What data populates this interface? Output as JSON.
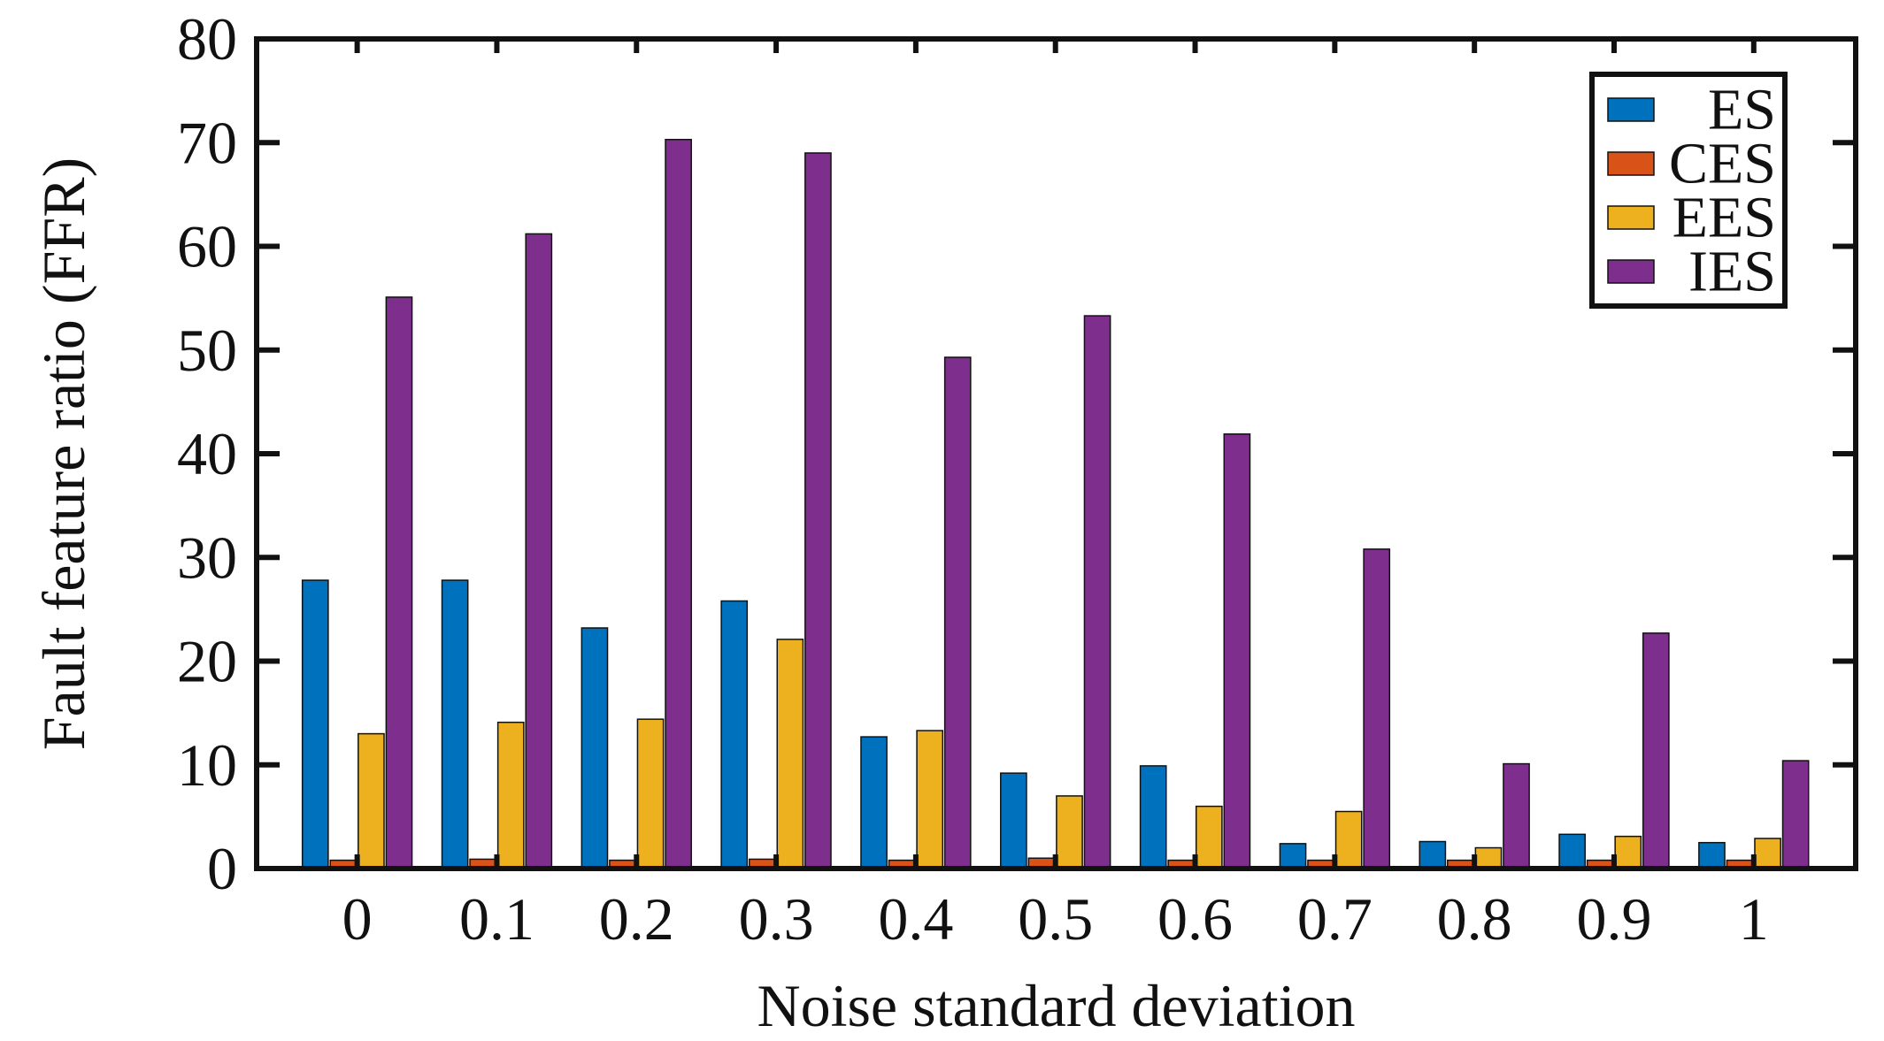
{
  "chart_data": {
    "type": "bar",
    "title": "",
    "xlabel": "Noise standard deviation",
    "ylabel": "Fault feature ratio (FFR)",
    "ylim": [
      0,
      80
    ],
    "yticks": [
      0,
      10,
      20,
      30,
      40,
      50,
      60,
      70,
      80
    ],
    "categories": [
      "0",
      "0.1",
      "0.2",
      "0.3",
      "0.4",
      "0.5",
      "0.6",
      "0.7",
      "0.8",
      "0.9",
      "1"
    ],
    "legend_position": "top-right",
    "series": [
      {
        "name": "ES",
        "color": "#0072BD",
        "values": [
          27.8,
          27.8,
          23.2,
          25.8,
          12.7,
          9.2,
          9.9,
          2.4,
          2.6,
          3.3,
          2.5
        ]
      },
      {
        "name": "CES",
        "color": "#D95319",
        "values": [
          0.8,
          0.9,
          0.8,
          0.9,
          0.8,
          1.0,
          0.8,
          0.8,
          0.8,
          0.8,
          0.8
        ]
      },
      {
        "name": "EES",
        "color": "#EDB120",
        "values": [
          13.0,
          14.1,
          14.4,
          22.1,
          13.3,
          7.0,
          6.0,
          5.5,
          2.0,
          3.1,
          2.9
        ]
      },
      {
        "name": "IES",
        "color": "#7E2F8E",
        "values": [
          55.1,
          61.2,
          70.3,
          69.0,
          49.3,
          53.3,
          41.9,
          30.8,
          10.1,
          22.7,
          10.4
        ]
      }
    ]
  }
}
